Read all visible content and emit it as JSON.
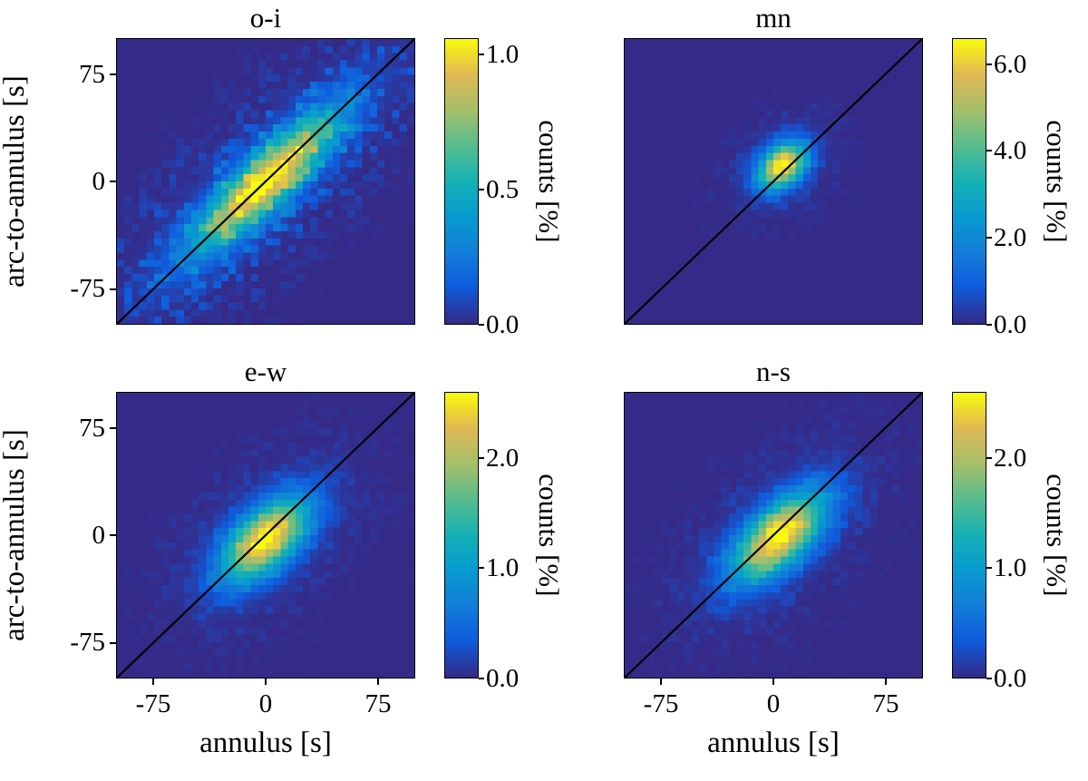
{
  "figure": {
    "background": "#ffffff",
    "text_color": "#000000",
    "axis_color": "#000000",
    "identity_line_color": "#000000"
  },
  "labels": {
    "xlabel": "annulus [s]",
    "ylabel": "arc-to-annulus [s]",
    "colorbar_label": "counts [%]"
  },
  "axes": {
    "xlim": [
      -100,
      100
    ],
    "ylim": [
      -100,
      100
    ],
    "xticks": {
      "values": [
        -75,
        0,
        75
      ],
      "labels": [
        "-75",
        "0",
        "75"
      ]
    },
    "yticks": {
      "values": [
        75,
        0,
        -75
      ],
      "labels": [
        "75",
        "0",
        "-75"
      ]
    },
    "grid": false
  },
  "colormap": {
    "name": "parula",
    "background_value_color": "#352a87",
    "stops": [
      {
        "t": 0.0,
        "rgb": [
          53,
          42,
          135
        ]
      },
      {
        "t": 0.13,
        "rgb": [
          15,
          92,
          221
        ]
      },
      {
        "t": 0.25,
        "rgb": [
          18,
          125,
          216
        ]
      },
      {
        "t": 0.38,
        "rgb": [
          7,
          156,
          207
        ]
      },
      {
        "t": 0.5,
        "rgb": [
          21,
          177,
          180
        ]
      },
      {
        "t": 0.63,
        "rgb": [
          89,
          189,
          140
        ]
      },
      {
        "t": 0.75,
        "rgb": [
          165,
          190,
          107
        ]
      },
      {
        "t": 0.88,
        "rgb": [
          225,
          185,
          82
        ]
      },
      {
        "t": 1.0,
        "rgb": [
          249,
          251,
          14
        ]
      }
    ]
  },
  "chart_data": [
    {
      "type": "heatmap",
      "title": "o-i",
      "position": "top-left",
      "xlabel": "annulus [s]",
      "ylabel": "arc-to-annulus [s]",
      "xlim": [
        -100,
        100
      ],
      "ylim": [
        -100,
        100
      ],
      "bins": 40,
      "identity_line": true,
      "axes_shown": {
        "x": false,
        "y": true
      },
      "distribution": {
        "shape": "gaussian-along-diagonal",
        "center": [
          0,
          0
        ],
        "sigma_along_diagonal": 45,
        "sigma_perpendicular": 12,
        "peak_counts_percent": 1.06,
        "noise": 0.28
      },
      "colorbar": {
        "label": "counts [%]",
        "vmin": 0.0,
        "vmax": 1.06,
        "ticks": [
          {
            "value": 0.0,
            "label": "0.0"
          },
          {
            "value": 0.5,
            "label": "0.5"
          },
          {
            "value": 1.0,
            "label": "1.0"
          }
        ]
      }
    },
    {
      "type": "heatmap",
      "title": "mn",
      "position": "top-right",
      "xlabel": "annulus [s]",
      "ylabel": "arc-to-annulus [s]",
      "xlim": [
        -100,
        100
      ],
      "ylim": [
        -100,
        100
      ],
      "bins": 40,
      "identity_line": true,
      "axes_shown": {
        "x": false,
        "y": false
      },
      "distribution": {
        "shape": "gaussian-along-diagonal",
        "center": [
          6,
          11
        ],
        "sigma_along_diagonal": 13,
        "sigma_perpendicular": 9,
        "peak_counts_percent": 6.6,
        "noise": 0.12
      },
      "colorbar": {
        "label": "counts [%]",
        "vmin": 0.0,
        "vmax": 6.6,
        "ticks": [
          {
            "value": 0.0,
            "label": "0.0"
          },
          {
            "value": 2.0,
            "label": "2.0"
          },
          {
            "value": 4.0,
            "label": "4.0"
          },
          {
            "value": 6.0,
            "label": "6.0"
          }
        ]
      }
    },
    {
      "type": "heatmap",
      "title": "e-w",
      "position": "bottom-left",
      "xlabel": "annulus [s]",
      "ylabel": "arc-to-annulus [s]",
      "xlim": [
        -100,
        100
      ],
      "ylim": [
        -100,
        100
      ],
      "bins": 40,
      "identity_line": true,
      "axes_shown": {
        "x": true,
        "y": true
      },
      "distribution": {
        "shape": "gaussian-along-diagonal",
        "center": [
          0,
          -3
        ],
        "sigma_along_diagonal": 25,
        "sigma_perpendicular": 13,
        "peak_counts_percent": 2.6,
        "noise": 0.12
      },
      "colorbar": {
        "label": "counts [%]",
        "vmin": 0.0,
        "vmax": 2.6,
        "ticks": [
          {
            "value": 0.0,
            "label": "0.0"
          },
          {
            "value": 1.0,
            "label": "1.0"
          },
          {
            "value": 2.0,
            "label": "2.0"
          }
        ]
      }
    },
    {
      "type": "heatmap",
      "title": "n-s",
      "position": "bottom-right",
      "xlabel": "annulus [s]",
      "ylabel": "arc-to-annulus [s]",
      "xlim": [
        -100,
        100
      ],
      "ylim": [
        -100,
        100
      ],
      "bins": 40,
      "identity_line": true,
      "axes_shown": {
        "x": true,
        "y": false
      },
      "distribution": {
        "shape": "gaussian-along-diagonal",
        "center": [
          4,
          -1
        ],
        "sigma_along_diagonal": 27,
        "sigma_perpendicular": 13,
        "peak_counts_percent": 2.6,
        "noise": 0.12
      },
      "colorbar": {
        "label": "counts [%]",
        "vmin": 0.0,
        "vmax": 2.6,
        "ticks": [
          {
            "value": 0.0,
            "label": "0.0"
          },
          {
            "value": 1.0,
            "label": "1.0"
          },
          {
            "value": 2.0,
            "label": "2.0"
          }
        ]
      }
    }
  ]
}
